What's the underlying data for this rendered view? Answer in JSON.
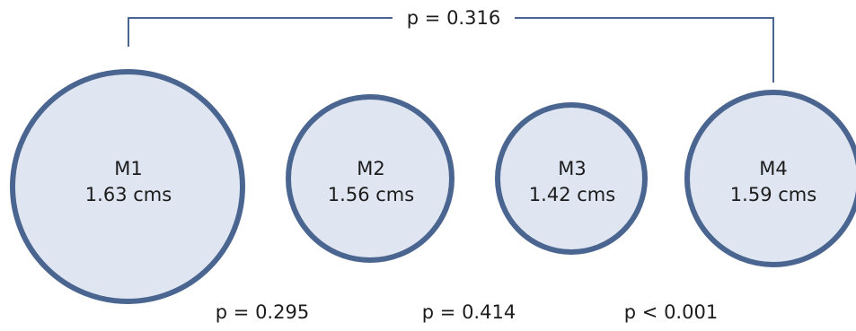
{
  "groups": [
    {
      "name": "M1",
      "value": "1.63 cms"
    },
    {
      "name": "M2",
      "value": "1.56 cms"
    },
    {
      "name": "M3",
      "value": "1.42 cms"
    },
    {
      "name": "M4",
      "value": "1.59 cms"
    }
  ],
  "comparisons": {
    "m1_m4": "p = 0.316",
    "m1_m2": "p = 0.295",
    "m2_m3": "p = 0.414",
    "m3_m4": "p < 0.001"
  },
  "colors": {
    "circle_fill": "#dfe6f1",
    "circle_stroke": "#4a6690",
    "text": "#1c1c1c"
  }
}
